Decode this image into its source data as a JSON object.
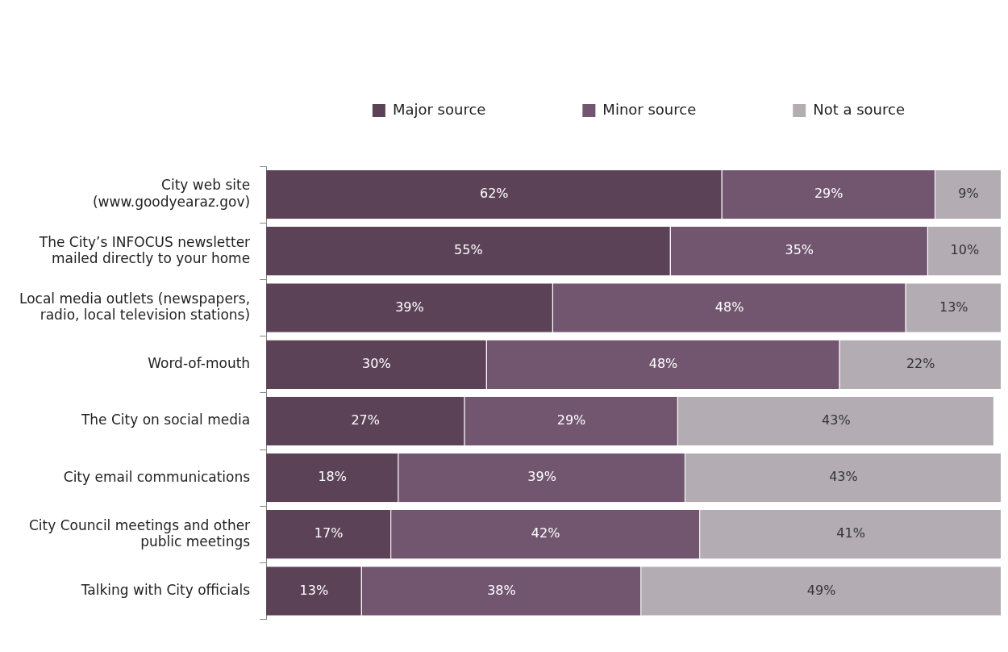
{
  "chart_data": {
    "type": "bar",
    "orientation": "horizontal",
    "stacked": true,
    "legend": "top",
    "tick_labels": "y",
    "categories": [
      "City web site (www.goodyearaz.gov)",
      "The City’s INFOCUS newsletter mailed directly to your home",
      "Local media outlets (newspapers, radio, local television stations)",
      "Word-of-mouth",
      "The City on social media",
      "City email communications",
      "City Council meetings and other public meetings",
      "Talking with City officials"
    ],
    "series": [
      {
        "name": "Major source",
        "color": "#5c4257",
        "values": [
          62,
          55,
          39,
          30,
          27,
          18,
          17,
          13
        ],
        "value_labels": [
          "62%",
          "55%",
          "39%",
          "30%",
          "27%",
          "18%",
          "17%",
          "13%"
        ]
      },
      {
        "name": "Minor source",
        "color": "#72566f",
        "values": [
          29,
          35,
          48,
          48,
          29,
          39,
          42,
          38
        ],
        "value_labels": [
          "29%",
          "35%",
          "48%",
          "48%",
          "29%",
          "39%",
          "42%",
          "38%"
        ]
      },
      {
        "name": "Not a source",
        "color": "#b3adb3",
        "values": [
          9,
          10,
          13,
          22,
          43,
          43,
          41,
          49
        ],
        "value_labels": [
          "9%",
          "10%",
          "13%",
          "22%",
          "43%",
          "43%",
          "41%",
          "49%"
        ]
      }
    ]
  }
}
